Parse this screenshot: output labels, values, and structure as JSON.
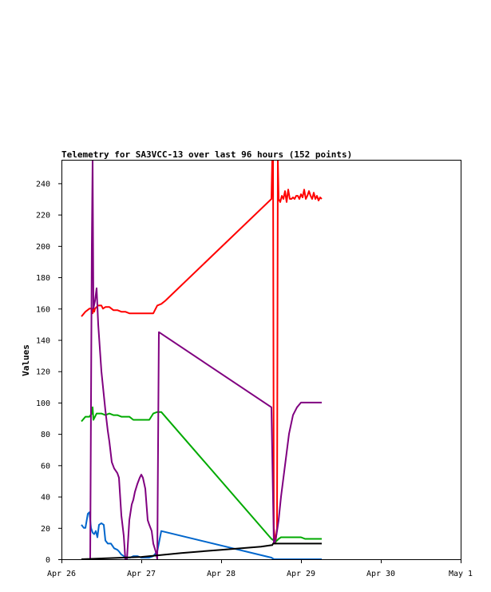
{
  "chart_data": {
    "type": "line",
    "title": "Telemetry for SA3VCC-13 over last 96 hours (152 points)",
    "xlabel": "",
    "ylabel": "Values",
    "xlim": [
      "Apr 26",
      "May 1"
    ],
    "ylim": [
      0,
      255
    ],
    "x_ticks": [
      "Apr 26",
      "Apr 27",
      "Apr 28",
      "Apr 29",
      "Apr 30",
      "May 1"
    ],
    "y_ticks": [
      0,
      20,
      40,
      60,
      80,
      100,
      120,
      140,
      160,
      180,
      200,
      220,
      240
    ],
    "grid": false,
    "legend": "none",
    "series": [
      {
        "color": "#ff0000",
        "points": [
          [
            0.25,
            155
          ],
          [
            0.3,
            158
          ],
          [
            0.35,
            160
          ],
          [
            0.38,
            160
          ],
          [
            0.39,
            157
          ],
          [
            0.4,
            161
          ],
          [
            0.41,
            158
          ],
          [
            0.42,
            160
          ],
          [
            0.44,
            161
          ],
          [
            0.46,
            162
          ],
          [
            0.5,
            162
          ],
          [
            0.52,
            160
          ],
          [
            0.55,
            161
          ],
          [
            0.6,
            161
          ],
          [
            0.65,
            159
          ],
          [
            0.7,
            159
          ],
          [
            0.75,
            158
          ],
          [
            0.8,
            158
          ],
          [
            0.85,
            157
          ],
          [
            0.9,
            157
          ],
          [
            0.95,
            157
          ],
          [
            1.0,
            157
          ],
          [
            1.05,
            157
          ],
          [
            1.1,
            157
          ],
          [
            1.15,
            157
          ],
          [
            1.2,
            162
          ],
          [
            1.25,
            163
          ],
          [
            1.3,
            165
          ],
          [
            2.63,
            230
          ],
          [
            2.64,
            255
          ],
          [
            2.65,
            255
          ],
          [
            2.66,
            20
          ],
          [
            2.68,
            10
          ],
          [
            2.7,
            20
          ],
          [
            2.71,
            255
          ],
          [
            2.72,
            230
          ],
          [
            2.74,
            228
          ],
          [
            2.76,
            232
          ],
          [
            2.78,
            230
          ],
          [
            2.8,
            235
          ],
          [
            2.82,
            228
          ],
          [
            2.84,
            236
          ],
          [
            2.86,
            230
          ],
          [
            2.88,
            230
          ],
          [
            2.9,
            231
          ],
          [
            2.92,
            230
          ],
          [
            2.94,
            232
          ],
          [
            2.96,
            232
          ],
          [
            2.98,
            230
          ],
          [
            3.0,
            233
          ],
          [
            3.02,
            231
          ],
          [
            3.04,
            236
          ],
          [
            3.06,
            230
          ],
          [
            3.08,
            232
          ],
          [
            3.1,
            235
          ],
          [
            3.12,
            232
          ],
          [
            3.14,
            230
          ],
          [
            3.16,
            234
          ],
          [
            3.18,
            230
          ],
          [
            3.2,
            232
          ],
          [
            3.22,
            229
          ],
          [
            3.24,
            231
          ],
          [
            3.26,
            230
          ]
        ]
      },
      {
        "color": "#00aa00",
        "points": [
          [
            0.25,
            88
          ],
          [
            0.3,
            91
          ],
          [
            0.35,
            91
          ],
          [
            0.38,
            93
          ],
          [
            0.39,
            97
          ],
          [
            0.4,
            89
          ],
          [
            0.42,
            91
          ],
          [
            0.44,
            93
          ],
          [
            0.5,
            93
          ],
          [
            0.55,
            92
          ],
          [
            0.6,
            93
          ],
          [
            0.65,
            92
          ],
          [
            0.7,
            92
          ],
          [
            0.75,
            91
          ],
          [
            0.8,
            91
          ],
          [
            0.85,
            91
          ],
          [
            0.9,
            89
          ],
          [
            0.95,
            89
          ],
          [
            1.0,
            89
          ],
          [
            1.05,
            89
          ],
          [
            1.1,
            89
          ],
          [
            1.15,
            93
          ],
          [
            1.2,
            94
          ],
          [
            1.25,
            94
          ],
          [
            2.63,
            13
          ],
          [
            2.66,
            12
          ],
          [
            2.68,
            11
          ],
          [
            2.7,
            12
          ],
          [
            2.72,
            13
          ],
          [
            2.75,
            14
          ],
          [
            2.8,
            14
          ],
          [
            2.9,
            14
          ],
          [
            3.0,
            14
          ],
          [
            3.05,
            13
          ],
          [
            3.1,
            13
          ],
          [
            3.2,
            13
          ],
          [
            3.26,
            13
          ]
        ]
      },
      {
        "color": "#0066cc",
        "points": [
          [
            0.25,
            22
          ],
          [
            0.28,
            20
          ],
          [
            0.3,
            20
          ],
          [
            0.33,
            29
          ],
          [
            0.35,
            30
          ],
          [
            0.37,
            20
          ],
          [
            0.39,
            17
          ],
          [
            0.41,
            16
          ],
          [
            0.43,
            18
          ],
          [
            0.45,
            14
          ],
          [
            0.47,
            22
          ],
          [
            0.5,
            23
          ],
          [
            0.53,
            22
          ],
          [
            0.55,
            12
          ],
          [
            0.58,
            10
          ],
          [
            0.62,
            10
          ],
          [
            0.66,
            7
          ],
          [
            0.7,
            6
          ],
          [
            0.72,
            5
          ],
          [
            0.75,
            3
          ],
          [
            0.78,
            2
          ],
          [
            0.82,
            1
          ],
          [
            0.86,
            1
          ],
          [
            0.9,
            2
          ],
          [
            0.95,
            2
          ],
          [
            1.0,
            1
          ],
          [
            1.05,
            1
          ],
          [
            1.1,
            1
          ],
          [
            1.15,
            2
          ],
          [
            1.2,
            5
          ],
          [
            1.25,
            18
          ],
          [
            2.63,
            1
          ],
          [
            2.66,
            0
          ],
          [
            2.7,
            0
          ],
          [
            2.8,
            0
          ],
          [
            3.0,
            0
          ],
          [
            3.26,
            0
          ]
        ]
      },
      {
        "color": "#800080",
        "points": [
          [
            0.35,
            0
          ],
          [
            0.36,
            0
          ],
          [
            0.38,
            200
          ],
          [
            0.39,
            255
          ],
          [
            0.4,
            160
          ],
          [
            0.42,
            165
          ],
          [
            0.44,
            173
          ],
          [
            0.46,
            150
          ],
          [
            0.5,
            120
          ],
          [
            0.52,
            110
          ],
          [
            0.55,
            95
          ],
          [
            0.58,
            82
          ],
          [
            0.6,
            75
          ],
          [
            0.63,
            62
          ],
          [
            0.66,
            58
          ],
          [
            0.7,
            55
          ],
          [
            0.72,
            52
          ],
          [
            0.75,
            28
          ],
          [
            0.78,
            15
          ],
          [
            0.8,
            0
          ],
          [
            0.82,
            0
          ],
          [
            0.85,
            25
          ],
          [
            0.88,
            35
          ],
          [
            0.9,
            38
          ],
          [
            0.92,
            43
          ],
          [
            0.95,
            48
          ],
          [
            0.98,
            52
          ],
          [
            1.0,
            54
          ],
          [
            1.02,
            52
          ],
          [
            1.05,
            45
          ],
          [
            1.08,
            25
          ],
          [
            1.1,
            22
          ],
          [
            1.13,
            18
          ],
          [
            1.15,
            10
          ],
          [
            1.18,
            5
          ],
          [
            1.2,
            0
          ],
          [
            1.22,
            145
          ],
          [
            2.63,
            97
          ],
          [
            2.66,
            10
          ],
          [
            2.68,
            12
          ],
          [
            2.7,
            18
          ],
          [
            2.72,
            25
          ],
          [
            2.75,
            40
          ],
          [
            2.8,
            60
          ],
          [
            2.85,
            80
          ],
          [
            2.9,
            92
          ],
          [
            2.95,
            97
          ],
          [
            3.0,
            100
          ],
          [
            3.05,
            100
          ],
          [
            3.1,
            100
          ],
          [
            3.2,
            100
          ],
          [
            3.26,
            100
          ]
        ]
      },
      {
        "color": "#000000",
        "points": [
          [
            0.25,
            0
          ],
          [
            0.5,
            0.5
          ],
          [
            1.0,
            1.5
          ],
          [
            1.5,
            4
          ],
          [
            2.0,
            6
          ],
          [
            2.5,
            8
          ],
          [
            2.63,
            9
          ],
          [
            2.64,
            9
          ],
          [
            2.65,
            10
          ],
          [
            2.7,
            10
          ],
          [
            3.0,
            10
          ],
          [
            3.26,
            10
          ]
        ]
      }
    ]
  }
}
